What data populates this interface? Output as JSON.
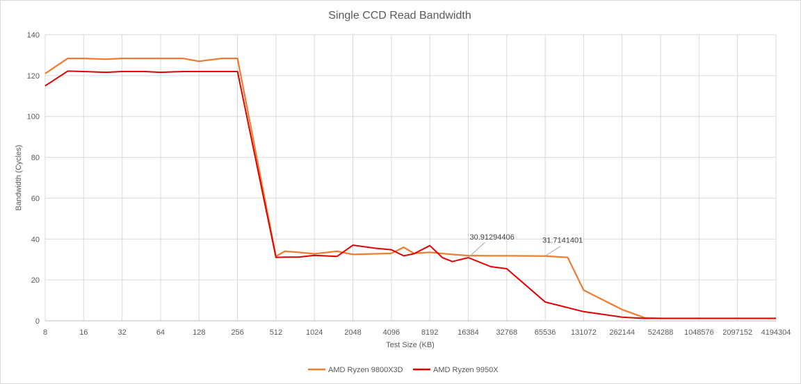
{
  "chart_data": {
    "type": "line",
    "title": "Single CCD Read Bandwidth",
    "xlabel": "Test Size (KB)",
    "ylabel": "Bandwidth (Cycles)",
    "ylim": [
      0,
      140
    ],
    "y_ticks": [
      0,
      20,
      40,
      60,
      80,
      100,
      120,
      140
    ],
    "x_scale": "log2",
    "x_ticks": [
      "8",
      "16",
      "32",
      "64",
      "128",
      "256",
      "512",
      "1024",
      "2048",
      "4096",
      "8192",
      "16384",
      "32768",
      "65536",
      "131072",
      "262144",
      "524288",
      "1048576",
      "2097152",
      "4194304"
    ],
    "grid": true,
    "legend_position": "bottom",
    "series": [
      {
        "name": "AMD Ryzen 9800X3D",
        "color": "#ed7d31",
        "points": [
          [
            8,
            121
          ],
          [
            12,
            128.4
          ],
          [
            16,
            128.4
          ],
          [
            24,
            128
          ],
          [
            32,
            128.4
          ],
          [
            48,
            128.4
          ],
          [
            64,
            128.4
          ],
          [
            96,
            128.4
          ],
          [
            128,
            127
          ],
          [
            192,
            128.4
          ],
          [
            256,
            128.4
          ],
          [
            512,
            31.5
          ],
          [
            600,
            34
          ],
          [
            768,
            33.5
          ],
          [
            1024,
            32.8
          ],
          [
            1536,
            34
          ],
          [
            2048,
            32.5
          ],
          [
            3072,
            32.8
          ],
          [
            4096,
            33
          ],
          [
            5120,
            36
          ],
          [
            6144,
            33
          ],
          [
            8192,
            33.5
          ],
          [
            12288,
            32.5
          ],
          [
            16384,
            31.9
          ],
          [
            24576,
            31.8
          ],
          [
            32768,
            31.8
          ],
          [
            65536,
            31.71
          ],
          [
            98304,
            31
          ],
          [
            131072,
            15
          ],
          [
            262144,
            5.5
          ],
          [
            393216,
            1.5
          ],
          [
            524288,
            1.2
          ],
          [
            1048576,
            1.2
          ],
          [
            2097152,
            1.2
          ],
          [
            4194304,
            1.2
          ]
        ]
      },
      {
        "name": "AMD Ryzen 9950X",
        "color": "#e00000",
        "points": [
          [
            8,
            115
          ],
          [
            12,
            122.2
          ],
          [
            16,
            122
          ],
          [
            24,
            121.6
          ],
          [
            32,
            122
          ],
          [
            48,
            122
          ],
          [
            64,
            121.6
          ],
          [
            96,
            122
          ],
          [
            128,
            122
          ],
          [
            192,
            122
          ],
          [
            256,
            122
          ],
          [
            512,
            31
          ],
          [
            600,
            31.2
          ],
          [
            768,
            31.2
          ],
          [
            1024,
            32
          ],
          [
            1536,
            31.5
          ],
          [
            2048,
            37
          ],
          [
            3072,
            35.5
          ],
          [
            4096,
            34.8
          ],
          [
            5120,
            31.8
          ],
          [
            6144,
            32.8
          ],
          [
            8192,
            36.8
          ],
          [
            10240,
            31
          ],
          [
            12288,
            29
          ],
          [
            16384,
            30.91
          ],
          [
            24576,
            26.5
          ],
          [
            32768,
            25.5
          ],
          [
            65536,
            9.2
          ],
          [
            131072,
            4.5
          ],
          [
            262144,
            1.8
          ],
          [
            393216,
            1.2
          ],
          [
            524288,
            1.2
          ],
          [
            1048576,
            1.2
          ],
          [
            2097152,
            1.2
          ],
          [
            4194304,
            1.2
          ]
        ]
      }
    ],
    "annotations": [
      {
        "text": "30.91294406",
        "x": 16384,
        "y": 30.91,
        "series": "AMD Ryzen 9950X"
      },
      {
        "text": "31.7141401",
        "x": 65536,
        "y": 31.71,
        "series": "AMD Ryzen 9800X3D"
      }
    ]
  }
}
